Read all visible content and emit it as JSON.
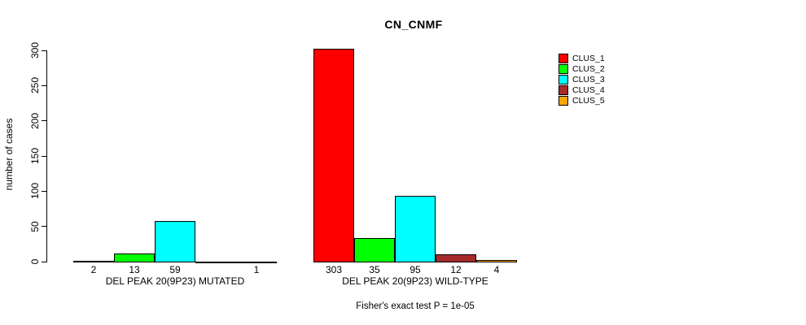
{
  "chart_data": {
    "type": "bar",
    "title": "CN_CNMF",
    "ylabel": "number of cases",
    "ylim": [
      0,
      300
    ],
    "yticks": [
      0,
      50,
      100,
      150,
      200,
      250,
      300
    ],
    "grid": false,
    "legend_position": "right",
    "legend": [
      "CLUS_1",
      "CLUS_2",
      "CLUS_3",
      "CLUS_4",
      "CLUS_5"
    ],
    "colors": [
      "#ff0000",
      "#00ff00",
      "#00ffff",
      "#a52a2a",
      "#ffa500"
    ],
    "groups": [
      {
        "label": "DEL PEAK 20(9P23) MUTATED",
        "values": [
          2,
          13,
          59,
          0,
          1
        ],
        "bar_labels": [
          "2",
          "13",
          "59",
          "",
          "1"
        ]
      },
      {
        "label": "DEL PEAK 20(9P23) WILD-TYPE",
        "values": [
          303,
          35,
          95,
          12,
          4
        ],
        "bar_labels": [
          "303",
          "35",
          "95",
          "12",
          "4"
        ]
      }
    ],
    "footnote": "Fisher's exact test P = 1e-05"
  }
}
